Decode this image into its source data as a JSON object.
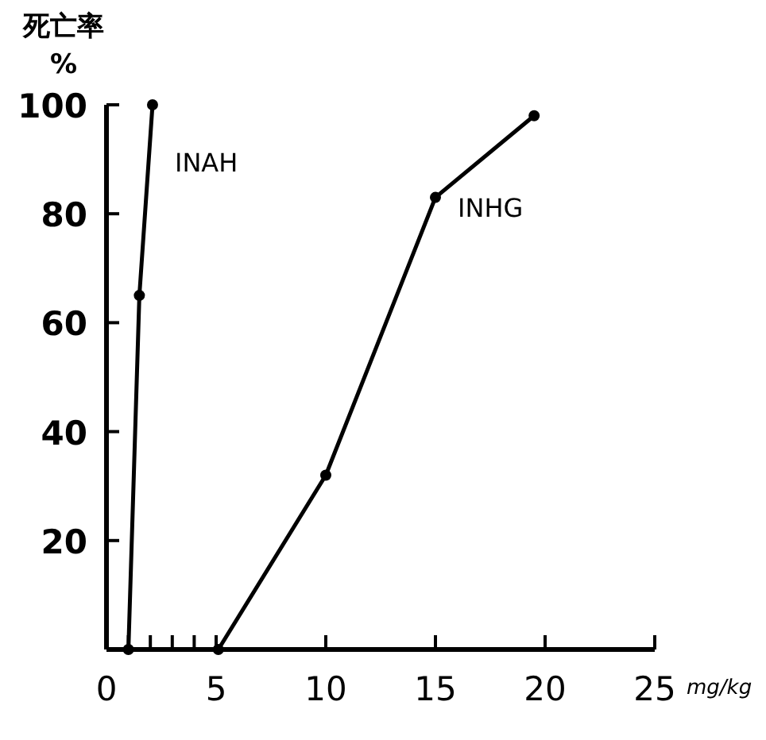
{
  "chart_data": {
    "type": "line",
    "ylabel": "死亡率\n%",
    "xlabel": "mg/kg",
    "series": [
      {
        "name": "INAH",
        "color": "#000000",
        "x": [
          1,
          1.5,
          2.1
        ],
        "values": [
          0,
          65,
          100
        ]
      },
      {
        "name": "INHG",
        "color": "#000000",
        "x": [
          5.1,
          10,
          15,
          19.5
        ],
        "values": [
          0,
          32,
          83,
          98
        ]
      }
    ],
    "xlim": [
      0,
      25
    ],
    "ylim": [
      0,
      100
    ],
    "xticks": [
      0,
      {
        "value": 1,
        "label": null
      },
      {
        "value": 2,
        "label": null
      },
      {
        "value": 3,
        "label": null
      },
      {
        "value": 4,
        "label": null
      },
      5,
      10,
      15,
      20,
      25
    ],
    "yticks": [
      20,
      40,
      60,
      80,
      100
    ],
    "marker": "circle",
    "line_style": "solid",
    "grid": false,
    "legend": false
  }
}
